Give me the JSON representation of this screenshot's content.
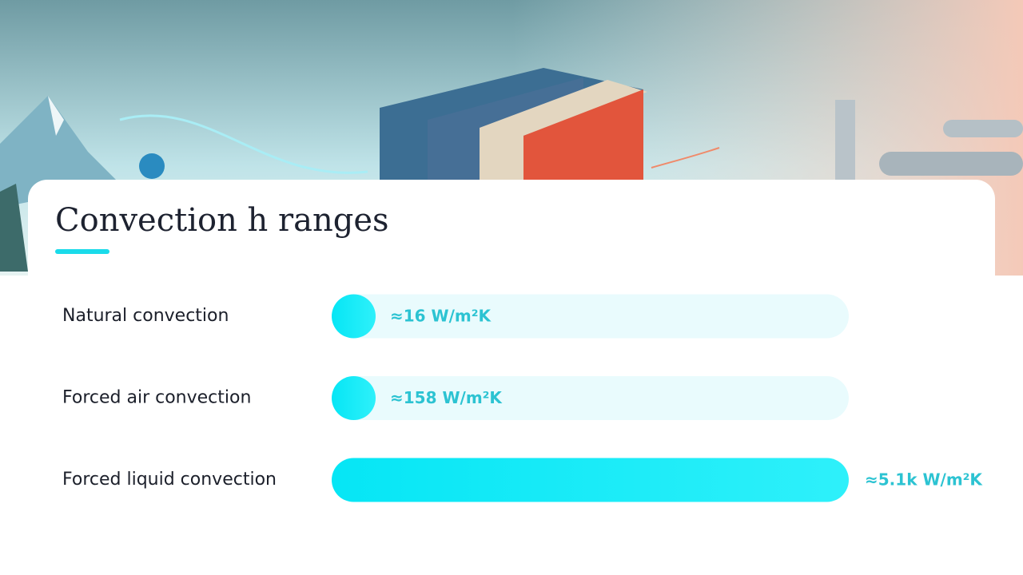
{
  "chart_data": {
    "type": "bar",
    "orientation": "horizontal",
    "title": "Convection h ranges",
    "categories": [
      "Natural convection",
      "Forced air convection",
      "Forced liquid convection"
    ],
    "values": [
      16,
      158,
      5100
    ],
    "value_labels": [
      "≈16 W/m²K",
      "≈158 W/m²K",
      "≈5.1k W/m²K"
    ],
    "color": "#12e8f6"
  }
}
